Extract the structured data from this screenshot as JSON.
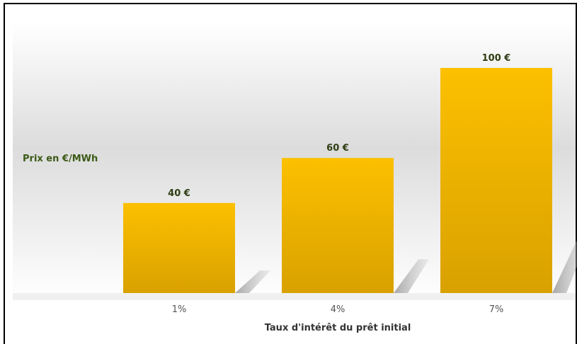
{
  "chart_data": {
    "type": "bar",
    "categories": [
      "1%",
      "4%",
      "7%"
    ],
    "values": [
      40,
      60,
      100
    ],
    "value_labels": [
      "40 €",
      "60 €",
      "100 €"
    ],
    "title": "",
    "xlabel": "Taux d'intérêt du prêt initial",
    "ylabel": "Prix en €/MWh",
    "ylim": [
      0,
      100
    ],
    "grid": false,
    "legend": "none",
    "bar_color_top": "#fcc000",
    "bar_color_bottom": "#d9a100",
    "label_color": "#2e3d12"
  }
}
